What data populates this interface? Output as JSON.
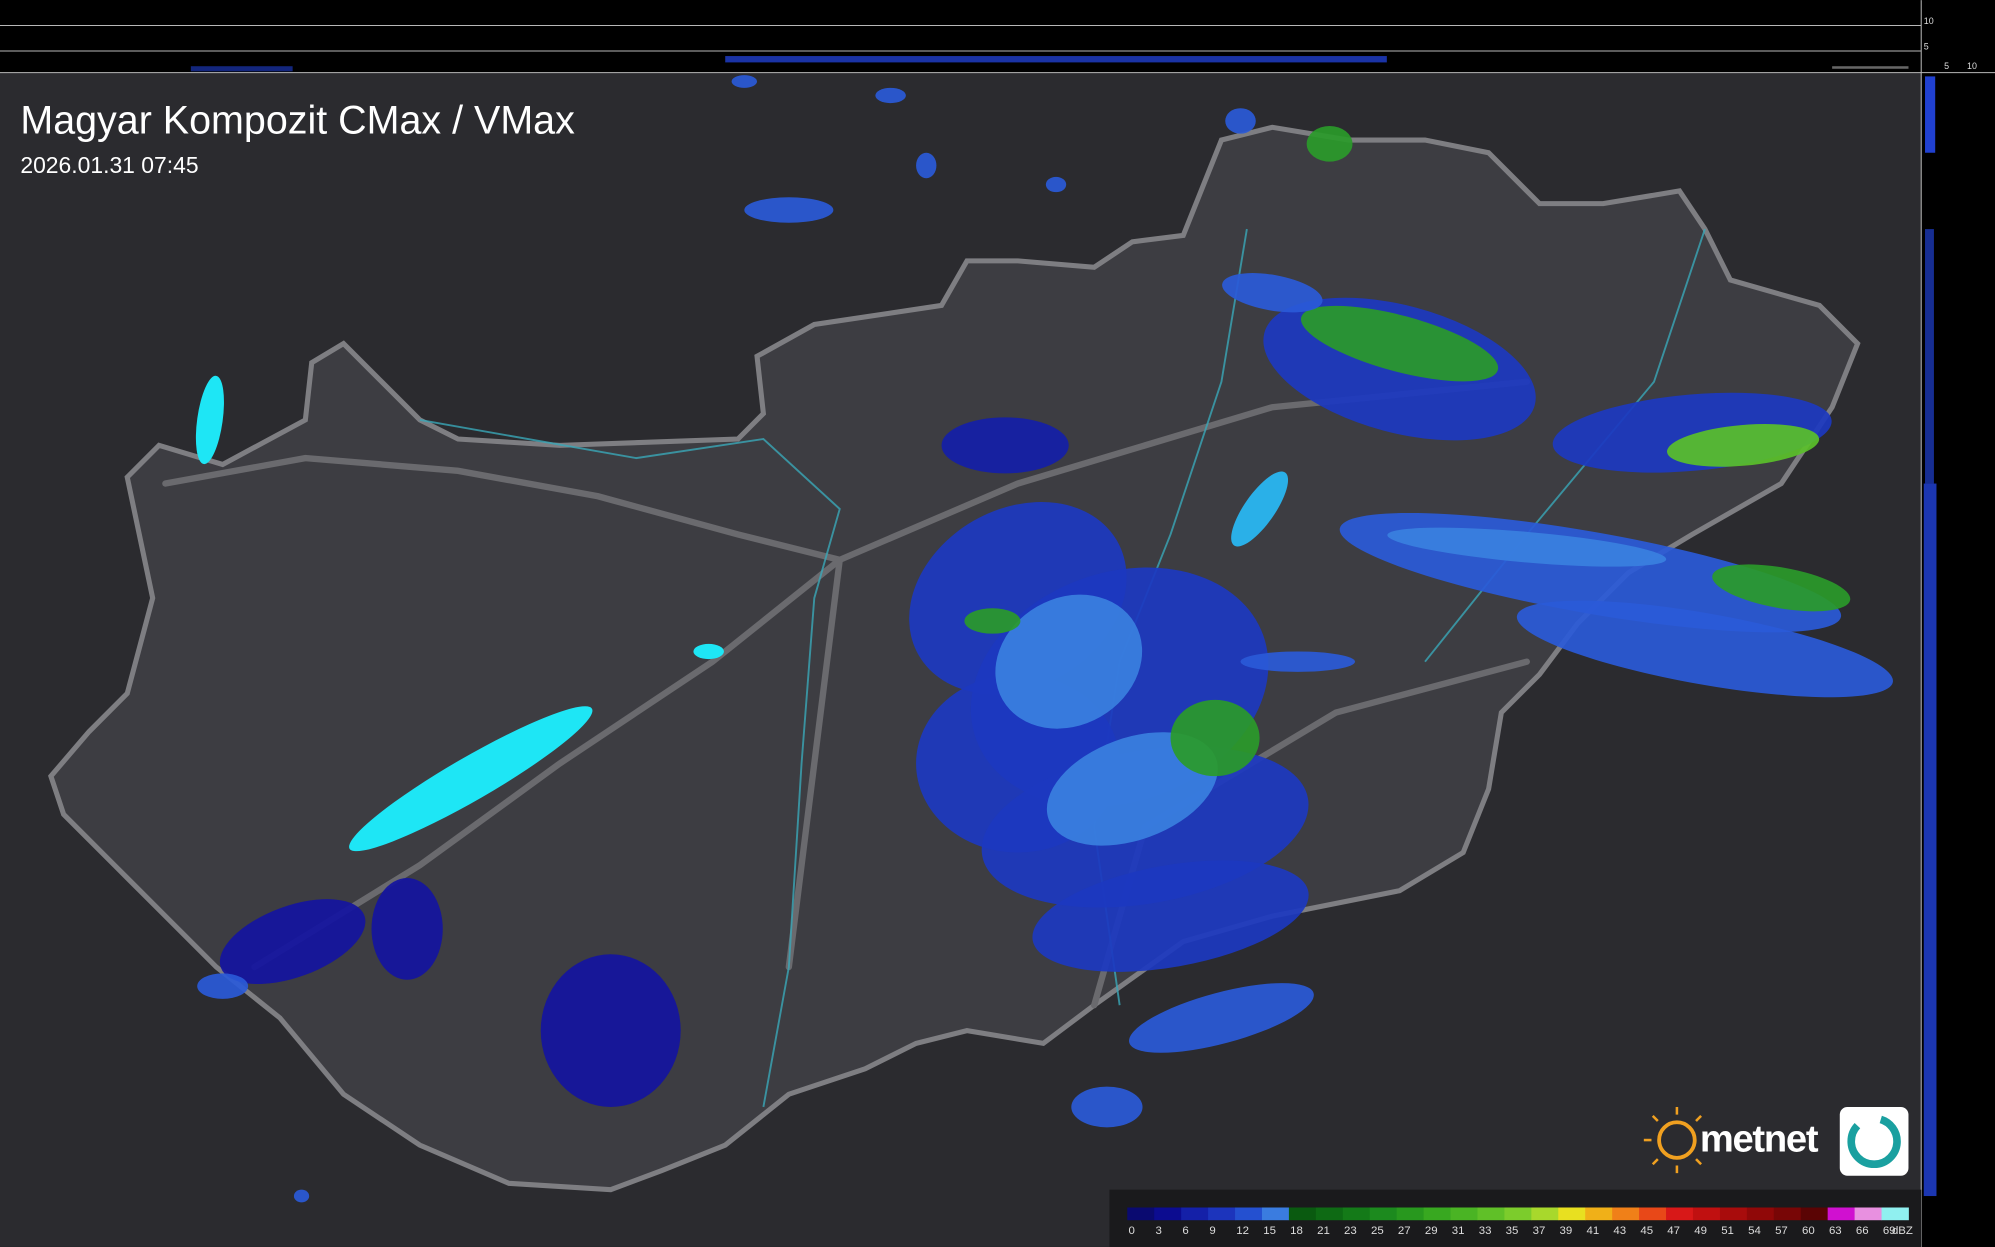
{
  "header": {
    "title": "Magyar Kompozit CMax / VMax",
    "timestamp": "2026.01.31 07:45"
  },
  "profile_axes": {
    "top": [
      "10",
      "5"
    ],
    "right": [
      "5",
      "10"
    ]
  },
  "legend": {
    "labels": [
      0,
      3,
      6,
      9,
      12,
      15,
      18,
      21,
      23,
      25,
      27,
      29,
      31,
      33,
      35,
      37,
      39,
      41,
      43,
      45,
      47,
      49,
      51,
      54,
      57,
      60,
      63,
      66,
      69
    ],
    "unit": "dBZ",
    "colors": [
      "#0a0a70",
      "#0c0c90",
      "#1420a8",
      "#1c34bc",
      "#2450d0",
      "#3a7ce0",
      "#0a5a10",
      "#0e6a14",
      "#147a18",
      "#1c8a1e",
      "#28981e",
      "#38a820",
      "#4ab424",
      "#60c028",
      "#7ccc2c",
      "#a8d82c",
      "#e8e020",
      "#f0b018",
      "#f08018",
      "#e84818",
      "#d81818",
      "#c01010",
      "#a80c0c",
      "#900808",
      "#780606",
      "#5a0404",
      "#d010d0",
      "#e890e0",
      "#90f0f0"
    ]
  },
  "logo": {
    "text": "metnet"
  }
}
